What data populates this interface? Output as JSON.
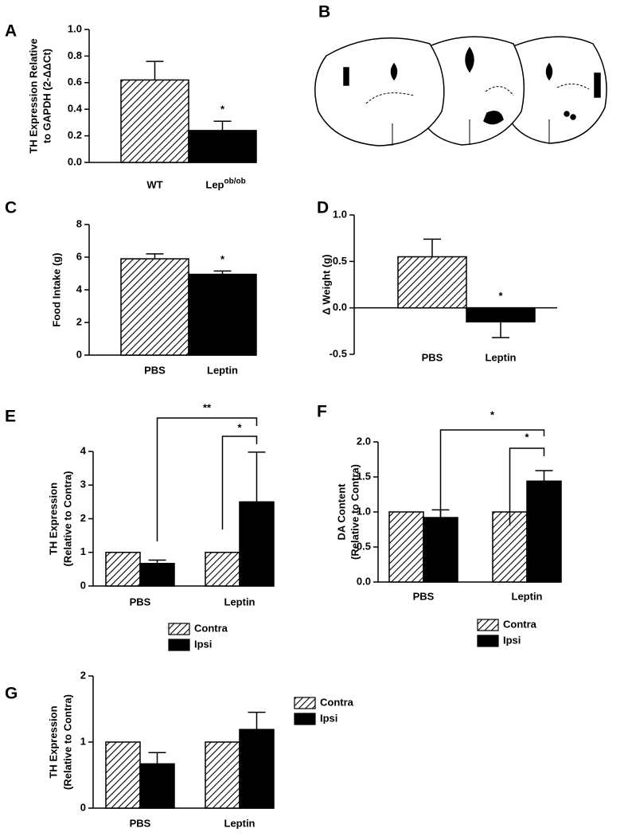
{
  "diagram_panel": "B",
  "chart_data": [
    {
      "panel": "A",
      "type": "bar",
      "ylabel": [
        "TH Expression Relative",
        "to GAPDH (2-ΔΔCt)"
      ],
      "categories": [
        "WT",
        "Lep"
      ],
      "category_superscripts": [
        null,
        "ob/ob"
      ],
      "values": [
        0.62,
        0.24
      ],
      "errors": [
        0.14,
        0.07
      ],
      "fills": [
        "hatched",
        "#000000"
      ],
      "significance": [
        null,
        "*"
      ],
      "ylim": [
        0,
        1
      ],
      "yticks": [
        {
          "value": 0,
          "label": "0.0"
        },
        {
          "value": 0.2,
          "label": "0.2"
        },
        {
          "value": 0.4,
          "label": "0.4"
        },
        {
          "value": 0.6,
          "label": "0.6"
        },
        {
          "value": 0.8,
          "label": "0.8"
        },
        {
          "value": 1,
          "label": "1.0"
        }
      ]
    },
    {
      "panel": "C",
      "type": "bar",
      "ylabel": [
        "Food Intake (g)"
      ],
      "categories": [
        "PBS",
        "Leptin"
      ],
      "values": [
        5.9,
        4.95
      ],
      "errors": [
        0.3,
        0.2
      ],
      "fills": [
        "hatched",
        "#000000"
      ],
      "significance": [
        null,
        "*"
      ],
      "ylim": [
        0,
        8
      ],
      "yticks": [
        0,
        2,
        4,
        6,
        8
      ]
    },
    {
      "panel": "D",
      "type": "bar",
      "ylabel": [
        "Δ Weight (g)"
      ],
      "categories": [
        "PBS",
        "Leptin"
      ],
      "values": [
        0.55,
        -0.15
      ],
      "errors": [
        0.19,
        0.17
      ],
      "fills": [
        "hatched",
        "#000000"
      ],
      "significance": [
        null,
        "*"
      ],
      "ylim": [
        -0.5,
        1
      ],
      "yticks": [
        {
          "value": -0.5,
          "label": "-0.5"
        },
        {
          "value": 0,
          "label": "0.0"
        },
        {
          "value": 0.5,
          "label": "0.5"
        },
        {
          "value": 1,
          "label": "1.0"
        }
      ]
    },
    {
      "panel": "E",
      "type": "grouped_bar",
      "ylabel": [
        "TH Expression",
        "(Relative to Contra)"
      ],
      "categories": [
        "PBS",
        "Leptin"
      ],
      "series": [
        {
          "name": "Contra",
          "fill": "hatched",
          "values": [
            1,
            1
          ]
        },
        {
          "name": "Ipsi",
          "fill": "#000000",
          "values": [
            0.67,
            2.5
          ],
          "errors": [
            0.1,
            1.48
          ]
        }
      ],
      "brackets": [
        "**",
        "*"
      ],
      "ylim": [
        0,
        4
      ],
      "yticks": [
        0,
        1,
        2,
        3,
        4
      ]
    },
    {
      "panel": "F",
      "type": "grouped_bar",
      "ylabel": [
        "DA Content",
        "(Relative to Contra)"
      ],
      "categories": [
        "PBS",
        "Leptin"
      ],
      "series": [
        {
          "name": "Contra",
          "fill": "hatched",
          "values": [
            1,
            1
          ]
        },
        {
          "name": "Ipsi",
          "fill": "#000000",
          "values": [
            0.92,
            1.44
          ],
          "errors": [
            0.11,
            0.15
          ]
        }
      ],
      "brackets": [
        "*",
        "*"
      ],
      "ylim": [
        0,
        2
      ],
      "yticks": [
        {
          "value": 0,
          "label": "0.0"
        },
        {
          "value": 0.5,
          "label": "0.5"
        },
        {
          "value": 1,
          "label": "1.0"
        },
        {
          "value": 1.5,
          "label": "1.5"
        },
        {
          "value": 2,
          "label": "2.0"
        }
      ]
    },
    {
      "panel": "G",
      "type": "grouped_bar",
      "ylabel": [
        "TH Expression",
        "(Relative to Contra)"
      ],
      "categories": [
        "PBS",
        "Leptin"
      ],
      "series": [
        {
          "name": "Contra",
          "fill": "hatched",
          "values": [
            1,
            1
          ]
        },
        {
          "name": "Ipsi",
          "fill": "#000000",
          "values": [
            0.67,
            1.19
          ],
          "errors": [
            0.17,
            0.26
          ]
        }
      ],
      "ylim": [
        0,
        2
      ],
      "yticks": [
        0,
        1,
        2
      ]
    }
  ]
}
